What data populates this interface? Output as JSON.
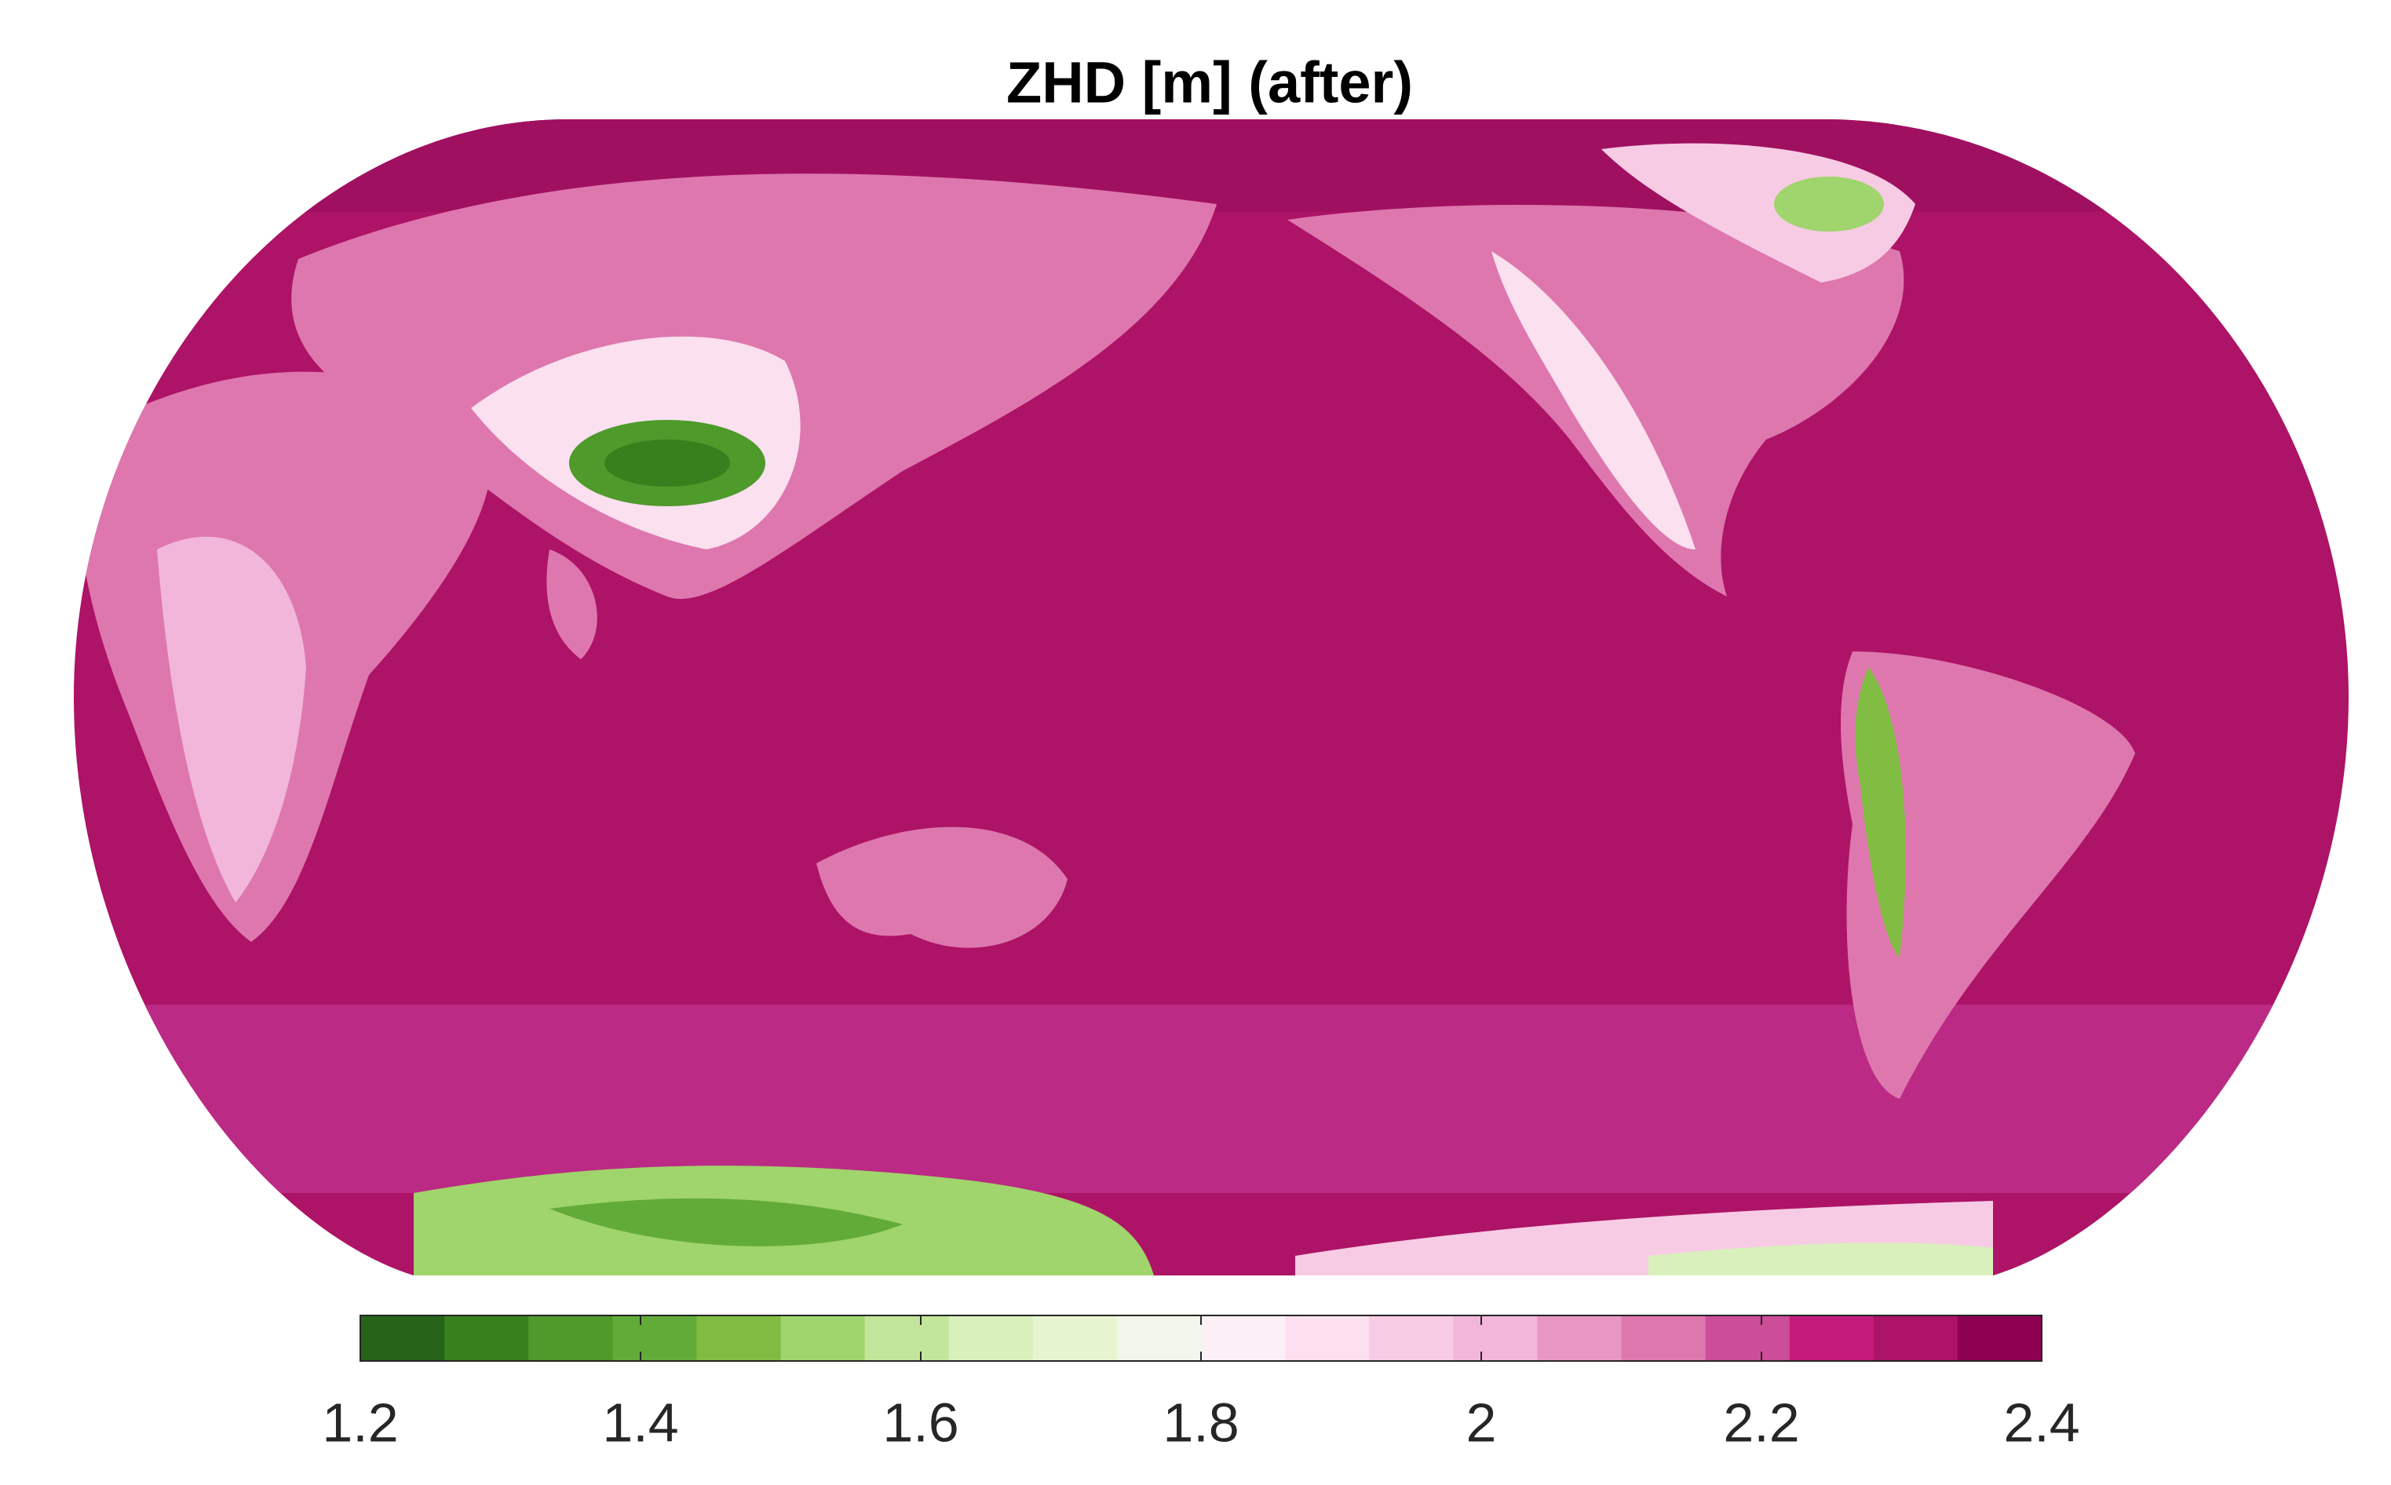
{
  "title": "ZHD [m] (after)",
  "colorbar": {
    "clim": [
      1.2,
      2.4
    ],
    "ticks": [
      1.2,
      1.4,
      1.6,
      1.8,
      2,
      2.2,
      2.4
    ],
    "colors": [
      "#276419",
      "#37801e",
      "#4e9a2b",
      "#62ab38",
      "#7fbc41",
      "#a0d46c",
      "#c1e59a",
      "#d9f0bd",
      "#e6f5d0",
      "#f2f5ea",
      "#fcf0f6",
      "#fde0ef",
      "#f7cbe4",
      "#f1b6da",
      "#e897c4",
      "#de77ae",
      "#cc4d98",
      "#c51b7d",
      "#ad1366",
      "#8e0152"
    ]
  }
}
